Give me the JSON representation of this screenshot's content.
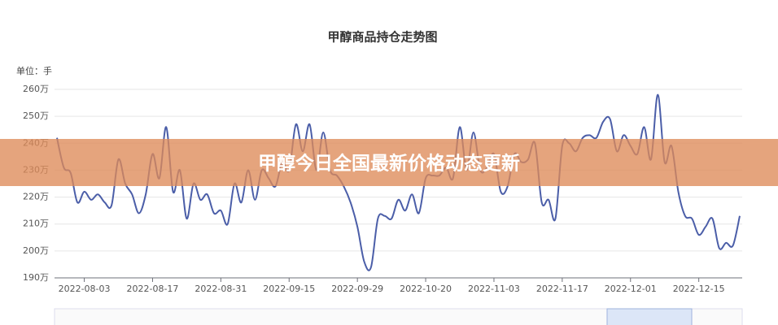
{
  "chart_data": {
    "type": "line",
    "title": "甲醇商品持仓走势图",
    "unit_label": "单位：手",
    "categories": [
      null,
      null,
      null,
      null,
      "2022-08-03",
      null,
      null,
      null,
      null,
      null,
      null,
      null,
      null,
      null,
      "2022-08-17",
      null,
      null,
      null,
      null,
      null,
      null,
      null,
      null,
      null,
      "2022-08-31",
      null,
      null,
      null,
      null,
      null,
      null,
      null,
      null,
      null,
      "2022-09-15",
      null,
      null,
      null,
      null,
      null,
      null,
      null,
      null,
      null,
      "2022-09-29",
      null,
      null,
      null,
      null,
      null,
      null,
      null,
      null,
      null,
      "2022-10-20",
      null,
      null,
      null,
      null,
      null,
      null,
      null,
      null,
      null,
      "2022-11-03",
      null,
      null,
      null,
      null,
      null,
      null,
      null,
      null,
      null,
      "2022-11-17",
      null,
      null,
      null,
      null,
      null,
      null,
      null,
      null,
      null,
      "2022-12-01",
      null,
      null,
      null,
      null,
      null,
      null,
      null,
      null,
      null,
      "2022-12-15",
      null,
      null,
      null,
      null,
      null,
      null
    ],
    "values": [
      242,
      231,
      229,
      218,
      222,
      219,
      221,
      218,
      217,
      234,
      225,
      221,
      214,
      221,
      236,
      227,
      246,
      222,
      230,
      212,
      225,
      219,
      221,
      214,
      215,
      210,
      225,
      218,
      230,
      219,
      230,
      227,
      224,
      233,
      230,
      247,
      237,
      247,
      230,
      244,
      230,
      228,
      224,
      218,
      209,
      196,
      194,
      212,
      213,
      212,
      219,
      215,
      221,
      214,
      227,
      228,
      228,
      231,
      227,
      246,
      230,
      244,
      230,
      231,
      236,
      222,
      224,
      236,
      233,
      234,
      240,
      218,
      219,
      212,
      239,
      240,
      237,
      242,
      243,
      242,
      248,
      249,
      237,
      243,
      239,
      236,
      246,
      234,
      258,
      233,
      239,
      222,
      213,
      212,
      206,
      209,
      212,
      201,
      203,
      202,
      213
    ],
    "color": "#4b5ea8",
    "ylim": [
      190,
      260
    ],
    "yticks": [
      {
        "value": 190,
        "label": "190万"
      },
      {
        "value": 200,
        "label": "200万"
      },
      {
        "value": 210,
        "label": "210万"
      },
      {
        "value": 220,
        "label": "220万"
      },
      {
        "value": 230,
        "label": "230万"
      },
      {
        "value": 240,
        "label": "240万"
      },
      {
        "value": 250,
        "label": "250万"
      },
      {
        "value": 260,
        "label": "260万"
      }
    ],
    "grid": true
  },
  "banner": {
    "text": "甲醇今日全国最新价格动态更新"
  }
}
